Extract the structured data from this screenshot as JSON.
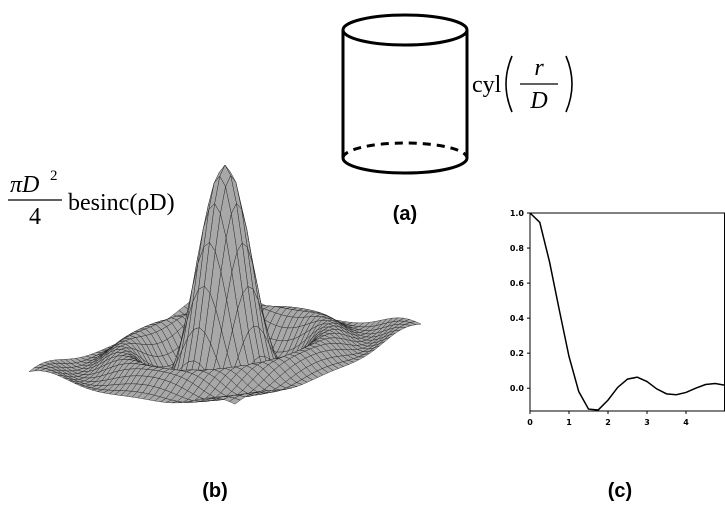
{
  "panels": {
    "a": {
      "label": "(a)",
      "function": "cyl",
      "numerator": "r",
      "denominator": "D"
    },
    "b": {
      "label": "(b)",
      "numerator": "πD",
      "exponent": "2",
      "denominator": "4",
      "function": "besinc(ρD)"
    },
    "c": {
      "label": "(c)"
    }
  },
  "chart_data": {
    "type": "line",
    "x": [
      0,
      0.25,
      0.5,
      0.75,
      1,
      1.25,
      1.5,
      1.75,
      2,
      2.25,
      2.5,
      2.75,
      3,
      3.25,
      3.5,
      3.75,
      4,
      4.25,
      4.5,
      4.75,
      5
    ],
    "values": [
      1,
      0.947,
      0.722,
      0.448,
      0.181,
      -0.019,
      -0.119,
      -0.124,
      -0.068,
      0.005,
      0.052,
      0.063,
      0.038,
      -0.004,
      -0.032,
      -0.037,
      -0.024,
      0,
      0.021,
      0.027,
      0.017
    ],
    "color": "#000000",
    "xlim": [
      0,
      5
    ],
    "ylim": [
      -0.13,
      1.0
    ],
    "xticks": [
      0,
      1,
      2,
      3,
      4
    ],
    "yticks": [
      {
        "value": 1,
        "label": "1.0"
      },
      0.8,
      0.6,
      0.4,
      0.2,
      {
        "value": 0,
        "label": "0.0"
      }
    ]
  }
}
